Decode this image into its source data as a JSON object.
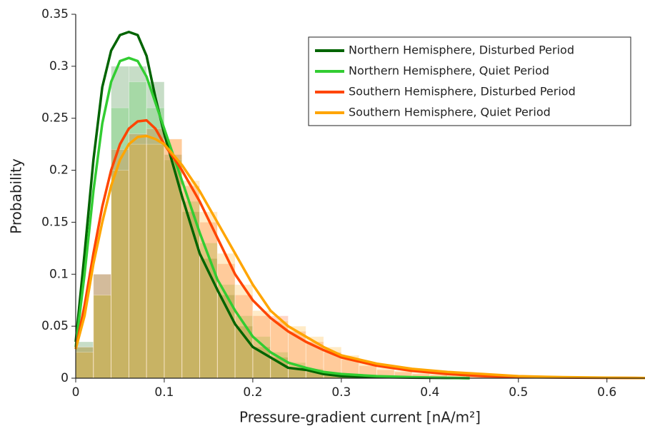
{
  "chart_data": {
    "type": "histogram",
    "xlabel": "Pressure-gradient current [nA/m²]",
    "ylabel": "Probability",
    "xlim": [
      0,
      0.643
    ],
    "ylim": [
      0,
      0.35
    ],
    "xticks": [
      0,
      0.1,
      0.2,
      0.3,
      0.4,
      0.5,
      0.6
    ],
    "yticks": [
      0,
      0.05,
      0.1,
      0.15,
      0.2,
      0.25,
      0.3,
      0.35
    ],
    "legend": "upper right",
    "bins": [
      0,
      0.02,
      0.04,
      0.06,
      0.08,
      0.1,
      0.12,
      0.14,
      0.16,
      0.18,
      0.2,
      0.22,
      0.24,
      0.26,
      0.28,
      0.3,
      0.32,
      0.34,
      0.36,
      0.38,
      0.4,
      0.42,
      0.44,
      0.46,
      0.48,
      0.5,
      0.52,
      0.54,
      0.56,
      0.58,
      0.6,
      0.62,
      0.64
    ],
    "series": [
      {
        "name": "Northern Hemisphere, Disturbed Period",
        "color": "#006400",
        "values": [
          0.035,
          0.1,
          0.3,
          0.3,
          0.285,
          0.215,
          0.16,
          0.115,
          0.08,
          0.05,
          0.03,
          0.02,
          0.01,
          0.006,
          0.004,
          0.002,
          0.001,
          0.001,
          0.0005,
          0,
          0,
          0,
          0,
          0,
          0,
          0,
          0,
          0,
          0,
          0,
          0,
          0
        ],
        "curve_x": [
          0,
          0.01,
          0.02,
          0.03,
          0.04,
          0.05,
          0.06,
          0.07,
          0.08,
          0.09,
          0.1,
          0.12,
          0.14,
          0.16,
          0.18,
          0.2,
          0.22,
          0.24,
          0.26,
          0.28,
          0.3,
          0.34,
          0.38,
          0.445
        ],
        "curve_y": [
          0.035,
          0.12,
          0.21,
          0.28,
          0.315,
          0.33,
          0.333,
          0.33,
          0.31,
          0.27,
          0.235,
          0.175,
          0.12,
          0.085,
          0.052,
          0.03,
          0.02,
          0.01,
          0.008,
          0.004,
          0.002,
          0.001,
          0.0005,
          0
        ]
      },
      {
        "name": "Northern Hemisphere, Quiet Period",
        "color": "#32cd32",
        "values": [
          0.03,
          0.08,
          0.26,
          0.285,
          0.26,
          0.21,
          0.17,
          0.13,
          0.09,
          0.06,
          0.04,
          0.025,
          0.015,
          0.009,
          0.005,
          0.003,
          0.002,
          0.001,
          0.001,
          0,
          0,
          0,
          0,
          0,
          0,
          0,
          0,
          0,
          0,
          0,
          0,
          0
        ],
        "curve_x": [
          0,
          0.01,
          0.02,
          0.03,
          0.04,
          0.05,
          0.06,
          0.07,
          0.08,
          0.09,
          0.1,
          0.12,
          0.14,
          0.16,
          0.18,
          0.2,
          0.22,
          0.24,
          0.26,
          0.28,
          0.3,
          0.34,
          0.38,
          0.445
        ],
        "curve_y": [
          0.03,
          0.1,
          0.18,
          0.245,
          0.285,
          0.305,
          0.308,
          0.305,
          0.29,
          0.265,
          0.24,
          0.19,
          0.14,
          0.095,
          0.065,
          0.04,
          0.025,
          0.015,
          0.01,
          0.006,
          0.004,
          0.002,
          0.001,
          0
        ]
      },
      {
        "name": "Southern Hemisphere, Disturbed Period",
        "color": "#ff4500",
        "values": [
          0.03,
          0.1,
          0.22,
          0.235,
          0.24,
          0.23,
          0.185,
          0.15,
          0.11,
          0.08,
          0.06,
          0.06,
          0.045,
          0.035,
          0.025,
          0.018,
          0.012,
          0.008,
          0.006,
          0.004,
          0.003,
          0.002,
          0.002,
          0.001,
          0.001,
          0.001,
          0.001,
          0.0005,
          0.0005,
          0.0003,
          0.0003,
          0.0002
        ],
        "curve_x": [
          0,
          0.01,
          0.02,
          0.03,
          0.04,
          0.05,
          0.06,
          0.07,
          0.08,
          0.09,
          0.1,
          0.12,
          0.14,
          0.16,
          0.18,
          0.2,
          0.22,
          0.24,
          0.26,
          0.28,
          0.3,
          0.34,
          0.38,
          0.42,
          0.46,
          0.5,
          0.55,
          0.6,
          0.645
        ],
        "curve_y": [
          0.028,
          0.07,
          0.12,
          0.165,
          0.2,
          0.225,
          0.24,
          0.247,
          0.248,
          0.24,
          0.225,
          0.2,
          0.17,
          0.135,
          0.1,
          0.075,
          0.058,
          0.045,
          0.035,
          0.027,
          0.02,
          0.012,
          0.007,
          0.004,
          0.002,
          0.001,
          0.0006,
          0.0003,
          0.0002
        ]
      },
      {
        "name": "Southern Hemisphere, Quiet Period",
        "color": "#ffa500",
        "values": [
          0.025,
          0.08,
          0.2,
          0.225,
          0.225,
          0.23,
          0.19,
          0.16,
          0.12,
          0.09,
          0.065,
          0.055,
          0.05,
          0.04,
          0.03,
          0.022,
          0.015,
          0.01,
          0.007,
          0.005,
          0.004,
          0.003,
          0.002,
          0.002,
          0.001,
          0.001,
          0.001,
          0.001,
          0.0005,
          0.0005,
          0.0003,
          0.0002
        ],
        "curve_x": [
          0,
          0.01,
          0.02,
          0.03,
          0.04,
          0.05,
          0.06,
          0.07,
          0.08,
          0.09,
          0.1,
          0.12,
          0.14,
          0.16,
          0.18,
          0.2,
          0.22,
          0.24,
          0.26,
          0.28,
          0.3,
          0.34,
          0.38,
          0.42,
          0.46,
          0.5,
          0.55,
          0.6,
          0.645
        ],
        "curve_y": [
          0.028,
          0.06,
          0.11,
          0.15,
          0.185,
          0.21,
          0.225,
          0.232,
          0.233,
          0.23,
          0.225,
          0.205,
          0.18,
          0.15,
          0.12,
          0.09,
          0.065,
          0.05,
          0.04,
          0.03,
          0.022,
          0.014,
          0.009,
          0.006,
          0.004,
          0.002,
          0.001,
          0.0005,
          0.0002
        ]
      }
    ]
  }
}
